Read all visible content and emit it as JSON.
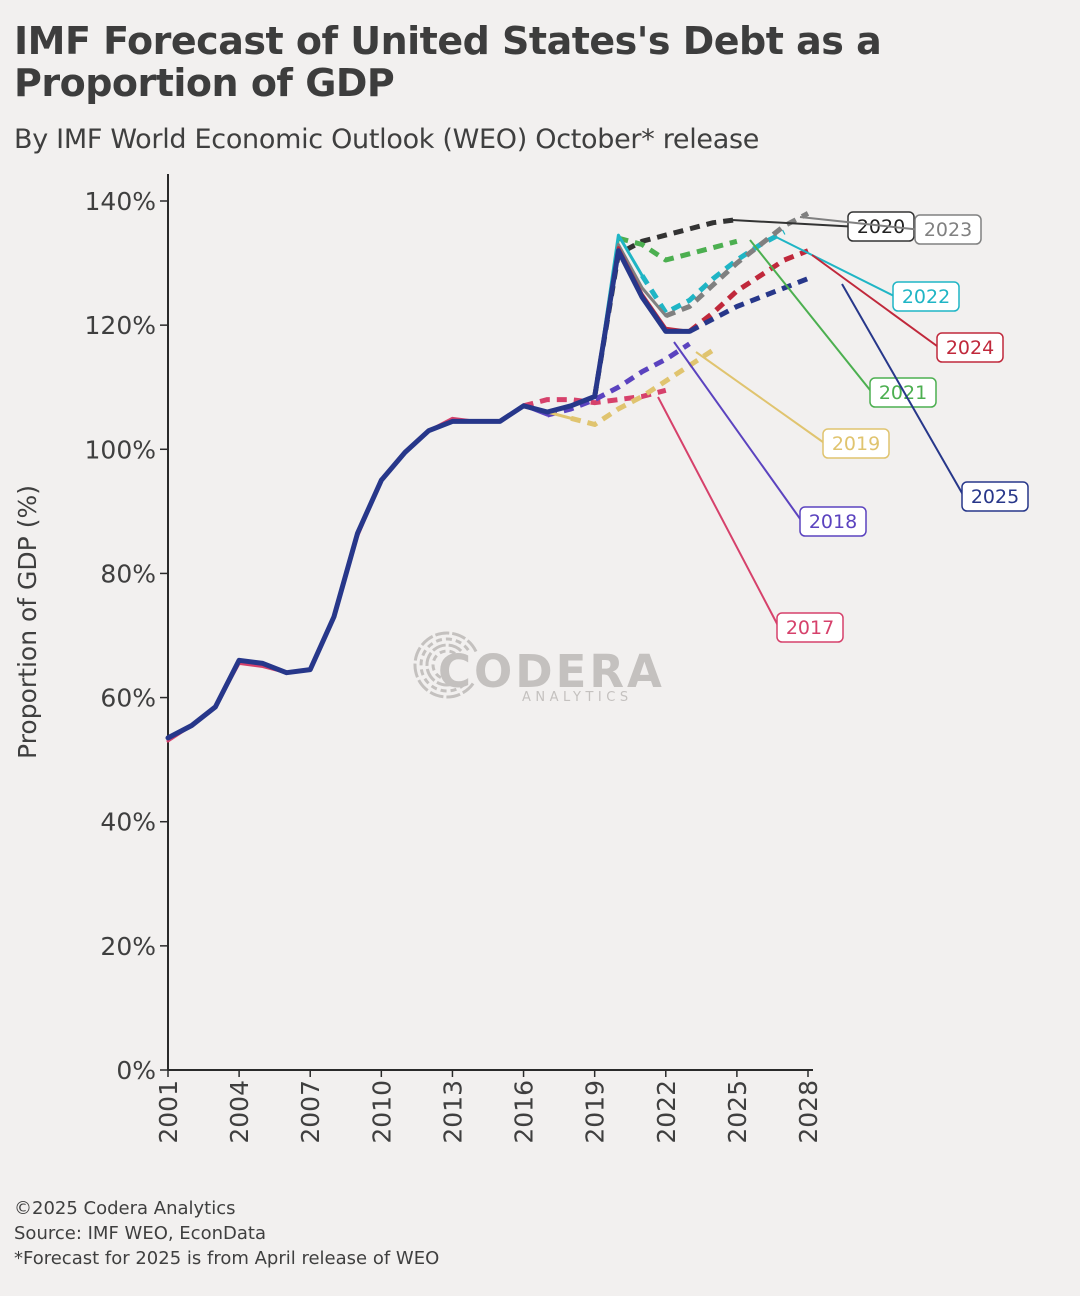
{
  "title": "IMF Forecast of United States's Debt as a Proportion of GDP",
  "subtitle": "By IMF World Economic Outlook (WEO) October* release",
  "footer": {
    "copyright": "©2025 Codera Analytics",
    "source": "Source: IMF WEO, EconData",
    "note": "*Forecast for 2025 is from April release of WEO"
  },
  "watermark": {
    "name": "CODERA",
    "tagline": "ANALYTICS"
  },
  "chart_data": {
    "type": "line",
    "xlabel": "",
    "ylabel": "Proportion of GDP (%)",
    "xlim": [
      2001,
      2028
    ],
    "ylim": [
      0,
      140
    ],
    "xticks": [
      "2001",
      "2004",
      "2007",
      "2010",
      "2013",
      "2016",
      "2019",
      "2022",
      "2025",
      "2028"
    ],
    "yticks": [
      "0%",
      "20%",
      "40%",
      "60%",
      "80%",
      "100%",
      "120%",
      "140%"
    ],
    "grid": false,
    "history_x": [
      2001,
      2002,
      2003,
      2004,
      2005,
      2006,
      2007,
      2008,
      2009,
      2010,
      2011,
      2012,
      2013,
      2014,
      2015,
      2016,
      2017,
      2018,
      2019,
      2020,
      2021,
      2022,
      2023
    ],
    "series": [
      {
        "name": "2017",
        "color": "#d6416b",
        "history": [
          53,
          55.5,
          58.5,
          65.5,
          65,
          64,
          64.5,
          73,
          86,
          95,
          99.5,
          103,
          105,
          104.5,
          104.5,
          107
        ],
        "forecast_x": [
          2016,
          2017,
          2018,
          2019,
          2020,
          2021,
          2022
        ],
        "forecast": [
          107,
          108,
          108,
          107.5,
          108,
          108.5,
          109.5
        ]
      },
      {
        "name": "2018",
        "color": "#5b43bf",
        "history": [
          53.5,
          55.5,
          58.5,
          66,
          65.5,
          64,
          64.5,
          73,
          86.5,
          95,
          99.5,
          103,
          104.5,
          104.5,
          104.5,
          107,
          105.5
        ],
        "forecast_x": [
          2017,
          2018,
          2019,
          2020,
          2021,
          2022,
          2023
        ],
        "forecast": [
          105.5,
          106.5,
          108,
          110,
          112.5,
          114.5,
          117
        ]
      },
      {
        "name": "2019",
        "color": "#e0c46f",
        "history": [
          53.5,
          55.5,
          58.5,
          66,
          65.5,
          64,
          64.5,
          73,
          86.5,
          95,
          99.5,
          103,
          104.5,
          104.5,
          104.5,
          107,
          106,
          105
        ],
        "forecast_x": [
          2018,
          2019,
          2020,
          2021,
          2022,
          2023,
          2024
        ],
        "forecast": [
          105,
          104,
          106.5,
          108.5,
          111,
          113.5,
          116
        ]
      },
      {
        "name": "2020",
        "color": "#333333",
        "history": [
          53.5,
          55.5,
          58.5,
          66,
          65.5,
          64,
          64.5,
          73,
          86.5,
          95,
          99.5,
          103,
          104.5,
          104.5,
          104.5,
          107,
          106,
          107,
          108.5
        ],
        "forecast_x": [
          2019,
          2020,
          2021,
          2022,
          2023,
          2024,
          2025
        ],
        "forecast": [
          108.5,
          131.5,
          133.5,
          134.5,
          135.5,
          136.5,
          137
        ]
      },
      {
        "name": "2021",
        "color": "#4caf50",
        "history": [
          53.5,
          55.5,
          58.5,
          66,
          65.5,
          64,
          64.5,
          73,
          86.5,
          95,
          99.5,
          103,
          104.5,
          104.5,
          104.5,
          107,
          106,
          107,
          108.5,
          134
        ],
        "forecast_x": [
          2020,
          2021,
          2022,
          2023,
          2024,
          2025
        ],
        "forecast": [
          134,
          133,
          130.5,
          131.5,
          132.5,
          133.5
        ]
      },
      {
        "name": "2022",
        "color": "#1fb5c5",
        "history": [
          53.5,
          55.5,
          58.5,
          66,
          65.5,
          64,
          64.5,
          73,
          86.5,
          95,
          99.5,
          103,
          104.5,
          104.5,
          104.5,
          107,
          106,
          107,
          108.5,
          134.5,
          128
        ],
        "forecast_x": [
          2021,
          2022,
          2023,
          2024,
          2025,
          2026,
          2027
        ],
        "forecast": [
          128,
          122,
          124,
          127.5,
          130.5,
          133,
          135
        ]
      },
      {
        "name": "2023",
        "color": "#808080",
        "history": [
          53.5,
          55.5,
          58.5,
          66,
          65.5,
          64,
          64.5,
          73,
          86.5,
          95,
          99.5,
          103,
          104.5,
          104.5,
          104.5,
          107,
          106,
          107,
          108.5,
          133,
          126,
          121.5
        ],
        "forecast_x": [
          2022,
          2023,
          2024,
          2025,
          2026,
          2027,
          2028
        ],
        "forecast": [
          121.5,
          123,
          126.5,
          130,
          133,
          136,
          138
        ]
      },
      {
        "name": "2024",
        "color": "#c0283b",
        "history": [
          53.5,
          55.5,
          58.5,
          66,
          65.5,
          64,
          64.5,
          73,
          86.5,
          95,
          99.5,
          103,
          104.5,
          104.5,
          104.5,
          107,
          106,
          107,
          108.5,
          132.5,
          125,
          119.5,
          119
        ],
        "forecast_x": [
          2023,
          2024,
          2025,
          2026,
          2027,
          2028
        ],
        "forecast": [
          119,
          122,
          125.5,
          128,
          130.5,
          132
        ]
      },
      {
        "name": "2025",
        "color": "#27378a",
        "history": [
          53.5,
          55.5,
          58.5,
          66,
          65.5,
          64,
          64.5,
          73,
          86.5,
          95,
          99.5,
          103,
          104.5,
          104.5,
          104.5,
          107,
          106,
          107,
          108.5,
          132,
          124.5,
          119,
          119
        ],
        "forecast_x": [
          2023,
          2024,
          2025,
          2026,
          2027,
          2028
        ],
        "forecast": [
          119,
          121,
          123,
          124.5,
          126,
          127.5
        ]
      }
    ]
  }
}
